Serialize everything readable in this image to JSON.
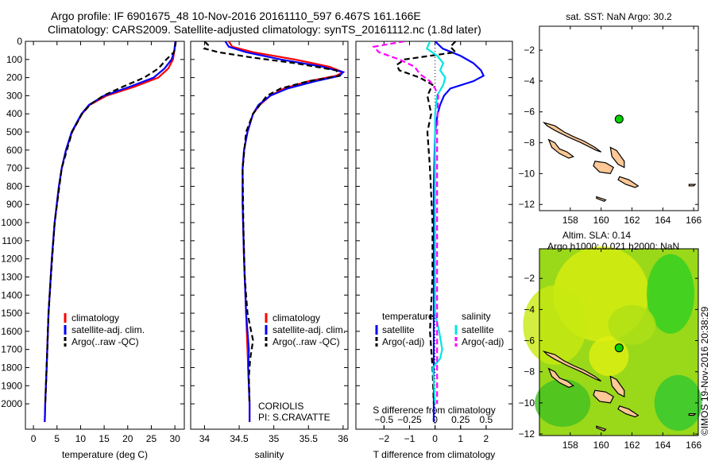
{
  "title": {
    "line1": "Argo profile: IF 6901675_48 10-Nov-2016 20161110_597 6.467S 161.166E",
    "line2": "Climatology: CARS2009. Satellite-adjusted climatology: synTS_20161112.nc (1.8d later)"
  },
  "credit": "©IMOS 19-Nov-2016 20:38:29",
  "colors": {
    "climatology": "#ff0000",
    "satellite": "#0000ff",
    "argo": "#000000",
    "salinity_satellite": "#00e5e5",
    "salinity_argo": "#ff00ff",
    "land": "#ffc896",
    "argo_point": "#00d000"
  },
  "chart_data": [
    {
      "type": "line",
      "id": "temperature",
      "xlabel": "temperature (deg C)",
      "ylabel": "",
      "xlim": [
        -1.7,
        32
      ],
      "ylim": [
        0,
        2140
      ],
      "xticks": [
        0,
        5,
        10,
        15,
        20,
        25,
        30
      ],
      "yticks": [
        0,
        100,
        200,
        300,
        400,
        500,
        600,
        700,
        800,
        900,
        1000,
        1100,
        1200,
        1300,
        1400,
        1500,
        1600,
        1700,
        1800,
        1900,
        2000
      ],
      "legend": [
        "climatology",
        "satellite-adj. clim.",
        "Argo(..raw -QC)"
      ],
      "series": [
        {
          "name": "climatology",
          "color": "#ff0000",
          "dash": false,
          "depth": [
            0,
            50,
            100,
            150,
            200,
            250,
            300,
            350,
            400,
            500,
            600,
            700,
            800,
            1000,
            1200,
            1500,
            1800,
            2000,
            2100
          ],
          "values": [
            30.1,
            29.9,
            29.6,
            28.6,
            26.5,
            21.5,
            15.5,
            12,
            10.3,
            8.2,
            6.9,
            6,
            5.4,
            4.5,
            3.9,
            3.2,
            2.8,
            2.5,
            2.4
          ]
        },
        {
          "name": "satellite-adj. clim.",
          "color": "#0000ff",
          "dash": false,
          "depth": [
            0,
            50,
            100,
            150,
            200,
            250,
            300,
            350,
            400,
            500,
            600,
            700,
            800,
            1000,
            1200,
            1500,
            1800,
            2000,
            2100
          ],
          "values": [
            30.1,
            29.9,
            29.3,
            27.8,
            25.5,
            20.5,
            15,
            11.8,
            10.2,
            8.1,
            6.9,
            6,
            5.4,
            4.5,
            3.9,
            3.2,
            2.8,
            2.5,
            2.4
          ]
        },
        {
          "name": "Argo(..raw -QC)",
          "color": "#000000",
          "dash": true,
          "depth": [
            0,
            20,
            60,
            100,
            150,
            200,
            250,
            300,
            350,
            400,
            500,
            700,
            1000,
            1300,
            1500,
            1800,
            2000
          ],
          "values": [
            30.2,
            30.1,
            29.8,
            28.2,
            26.5,
            23.5,
            19,
            14.8,
            12,
            10.3,
            8.2,
            6,
            4.5,
            3.7,
            3.2,
            2.8,
            2.5
          ]
        }
      ]
    },
    {
      "type": "line",
      "id": "salinity",
      "xlabel": "salinity",
      "xlim": [
        33.8,
        36.07
      ],
      "ylim": [
        0,
        2140
      ],
      "xticks": [
        34,
        34.5,
        35,
        35.5,
        36
      ],
      "legend": [
        "climatology",
        "satellite-adj. clim.",
        "Argo(..raw -QC)"
      ],
      "annotation": [
        "CORIOLIS",
        "PI: S.CRAVATTE"
      ],
      "series": [
        {
          "name": "climatology",
          "color": "#ff0000",
          "dash": false,
          "depth": [
            0,
            30,
            60,
            100,
            140,
            170,
            190,
            220,
            260,
            300,
            350,
            400,
            500,
            600,
            700,
            900,
            1200,
            1500,
            1700,
            1800,
            2000,
            2100
          ],
          "values": [
            34.35,
            34.4,
            34.7,
            35.3,
            35.8,
            36.0,
            35.9,
            35.5,
            35.15,
            34.95,
            34.8,
            34.7,
            34.62,
            34.57,
            34.55,
            34.55,
            34.57,
            34.6,
            34.62,
            34.63,
            34.65,
            34.65
          ]
        },
        {
          "name": "satellite-adj. clim.",
          "color": "#0000ff",
          "dash": false,
          "depth": [
            0,
            30,
            60,
            100,
            140,
            170,
            190,
            220,
            260,
            300,
            350,
            400,
            500,
            600,
            700,
            900,
            1200,
            1500,
            1700,
            1800,
            2000,
            2100
          ],
          "values": [
            34.3,
            34.35,
            34.6,
            35.1,
            35.7,
            36.0,
            35.95,
            35.6,
            35.2,
            34.95,
            34.78,
            34.7,
            34.62,
            34.57,
            34.55,
            34.55,
            34.57,
            34.6,
            34.64,
            34.63,
            34.65,
            34.65
          ]
        },
        {
          "name": "Argo(..raw -QC)",
          "color": "#000000",
          "dash": true,
          "depth": [
            0,
            20,
            40,
            60,
            90,
            120,
            160,
            190,
            220,
            260,
            300,
            400,
            500,
            700,
            1000,
            1300,
            1500,
            1650,
            1750,
            1850,
            2000
          ],
          "values": [
            34.0,
            34.05,
            34.0,
            34.2,
            34.7,
            35.3,
            35.9,
            35.95,
            35.5,
            35.1,
            34.9,
            34.7,
            34.6,
            34.55,
            34.56,
            34.58,
            34.62,
            34.7,
            34.66,
            34.64,
            34.65
          ]
        }
      ]
    },
    {
      "type": "line",
      "id": "difference",
      "xlabel": "T difference from climatology",
      "x2label": "S difference from climatology",
      "xlim": [
        -3.1,
        3.03
      ],
      "ylim": [
        0,
        2140
      ],
      "xticks": [
        -2,
        -1,
        0,
        1,
        2
      ],
      "x2ticks": [
        -0.5,
        -0.25,
        0,
        0.25,
        0.5
      ],
      "legend_headers": [
        "temperature",
        "salinity"
      ],
      "legend": [
        "satellite",
        "Argo(-adj)",
        "satellite",
        "Argo(-adj)"
      ],
      "series": [
        {
          "name": "temperature satellite",
          "units": "T",
          "color": "#0000ff",
          "dash": false,
          "depth": [
            0,
            40,
            80,
            120,
            160,
            190,
            220,
            260,
            300,
            350,
            400,
            450,
            500,
            800,
            1200,
            1500,
            1800,
            2000,
            2100
          ],
          "values": [
            0,
            0.3,
            1.0,
            1.5,
            1.8,
            1.9,
            1.5,
            0.6,
            0.35,
            0.2,
            0.1,
            0.05,
            0,
            -0.05,
            -0.05,
            -0.05,
            -0.05,
            -0.05,
            -0.05
          ]
        },
        {
          "name": "temperature Argo(-adj)",
          "units": "T",
          "color": "#000000",
          "dash": true,
          "depth": [
            0,
            30,
            60,
            100,
            130,
            160,
            200,
            240,
            300,
            400,
            500,
            700,
            1000,
            1300,
            1600,
            1800,
            2000
          ],
          "values": [
            0.8,
            0.6,
            0.8,
            -1.2,
            -1.5,
            -1.4,
            -0.6,
            -0.1,
            -0.3,
            -0.15,
            -0.3,
            -0.2,
            -0.1,
            -0.1,
            -0.2,
            -0.1,
            -0.05
          ]
        },
        {
          "name": "salinity satellite",
          "units": "S",
          "color": "#00e5e5",
          "dash": false,
          "depth": [
            0,
            40,
            80,
            120,
            160,
            200,
            240,
            300,
            400,
            600,
            1000,
            1500,
            1600,
            1700,
            1750,
            1800,
            2000
          ],
          "values": [
            -0.05,
            -0.08,
            0.02,
            0.08,
            0.05,
            0.1,
            0.08,
            0.02,
            0,
            0,
            0,
            0,
            0.04,
            0.07,
            0.05,
            -0.02,
            0
          ]
        },
        {
          "name": "salinity Argo(-adj)",
          "units": "S",
          "color": "#ff00ff",
          "dash": true,
          "depth": [
            0,
            30,
            60,
            100,
            140,
            180,
            220,
            260,
            300,
            500,
            1000,
            1500,
            2000
          ],
          "values": [
            -0.3,
            -0.6,
            -0.55,
            -0.35,
            -0.2,
            -0.15,
            -0.05,
            0.0,
            0.03,
            0.02,
            0.02,
            0.02,
            0.02
          ]
        }
      ]
    }
  ],
  "maps": [
    {
      "id": "sst",
      "title": "sat. SST: NaN Argo: 30.2",
      "lon": [
        156.0,
        166.3
      ],
      "lat": [
        -12.4,
        -0.45
      ],
      "xticks": [
        158,
        160,
        162,
        164,
        166
      ],
      "yticks": [
        -2,
        -4,
        -6,
        -8,
        -10,
        -12
      ],
      "argo": [
        161.166,
        -6.467
      ],
      "background": "white"
    },
    {
      "id": "sla",
      "title": [
        "Altim. SLA: 0.14",
        "Argo h1000: 0.021 h2000: NaN"
      ],
      "lon": [
        156.0,
        166.3
      ],
      "lat": [
        -12.1,
        -0.1
      ],
      "xticks": [
        158,
        160,
        162,
        164,
        166
      ],
      "yticks": [
        -2,
        -4,
        -6,
        -8,
        -10,
        -12
      ],
      "argo": [
        161.166,
        -6.467
      ],
      "background": "sla"
    }
  ],
  "islands": [
    [
      [
        156.3,
        -6.7
      ],
      [
        157.0,
        -6.9
      ],
      [
        157.6,
        -7.3
      ],
      [
        158.2,
        -7.6
      ],
      [
        158.9,
        -7.9
      ],
      [
        159.6,
        -8.3
      ],
      [
        160.0,
        -8.6
      ],
      [
        159.7,
        -8.5
      ],
      [
        158.7,
        -8.0
      ],
      [
        157.8,
        -7.6
      ],
      [
        157.0,
        -7.2
      ],
      [
        156.5,
        -6.9
      ]
    ],
    [
      [
        156.6,
        -7.8
      ],
      [
        157.0,
        -8.0
      ],
      [
        157.3,
        -8.4
      ],
      [
        157.8,
        -8.6
      ],
      [
        158.2,
        -8.9
      ],
      [
        157.9,
        -9.0
      ],
      [
        157.3,
        -8.7
      ],
      [
        156.8,
        -8.3
      ]
    ],
    [
      [
        159.6,
        -9.2
      ],
      [
        160.3,
        -9.3
      ],
      [
        160.8,
        -9.6
      ],
      [
        160.6,
        -10.0
      ],
      [
        159.9,
        -9.9
      ],
      [
        159.5,
        -9.5
      ]
    ],
    [
      [
        160.6,
        -8.3
      ],
      [
        161.0,
        -8.5
      ],
      [
        161.5,
        -9.2
      ],
      [
        161.5,
        -9.6
      ],
      [
        161.1,
        -9.4
      ],
      [
        160.7,
        -8.9
      ]
    ],
    [
      [
        161.2,
        -10.2
      ],
      [
        161.8,
        -10.4
      ],
      [
        162.4,
        -10.8
      ],
      [
        162.2,
        -10.9
      ],
      [
        161.6,
        -10.7
      ],
      [
        161.1,
        -10.4
      ]
    ],
    [
      [
        159.7,
        -11.5
      ],
      [
        160.3,
        -11.7
      ],
      [
        160.2,
        -11.8
      ],
      [
        159.7,
        -11.6
      ]
    ],
    [
      [
        165.7,
        -10.7
      ],
      [
        166.1,
        -10.7
      ],
      [
        166.0,
        -10.8
      ],
      [
        165.7,
        -10.8
      ]
    ]
  ]
}
